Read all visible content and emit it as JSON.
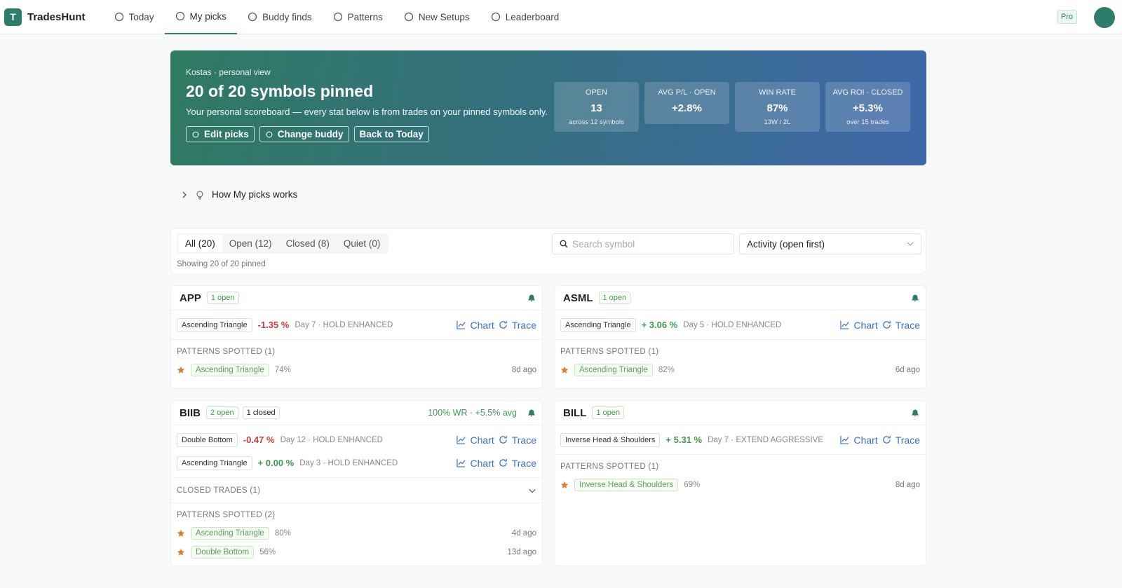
{
  "nav": {
    "logo_letter": "T",
    "brand": "TradesHunt",
    "items": [
      "Today",
      "My picks",
      "Buddy finds",
      "Patterns",
      "New Setups",
      "Leaderboard"
    ],
    "badge": "Pro"
  },
  "hero": {
    "eyebrow": "Kostas · personal view",
    "title": "20 of 20 symbols pinned",
    "subtitle": "Your personal scoreboard — every stat below is from trades on your pinned symbols only.",
    "buttons": [
      "Edit picks",
      "Change buddy",
      "Back to Today"
    ],
    "stats": [
      {
        "label": "OPEN",
        "value": "13",
        "sub": "across 12 symbols"
      },
      {
        "label": "AVG P/L · OPEN",
        "value": "+2.8%"
      },
      {
        "label": "WIN RATE",
        "value": "87%",
        "sub": "13W / 2L"
      },
      {
        "label": "AVG ROI · CLOSED",
        "value": "+5.3%",
        "sub": "over 15 trades"
      }
    ]
  },
  "how": "How My picks works",
  "filters": {
    "tabs": [
      "All (20)",
      "Open (12)",
      "Closed (8)",
      "Quiet (0)"
    ],
    "showing": "Showing 20 of 20 pinned",
    "search_placeholder": "Search symbol",
    "sort": "Activity (open first)"
  },
  "cards": [
    {
      "symbol": "APP",
      "badges": [
        "1 open"
      ],
      "trades": [
        {
          "pattern": "Ascending Triangle",
          "pl": "-1.35 %",
          "status": "Day 7 · HOLD ENHANCED",
          "links": [
            "Chart",
            "Trace"
          ]
        }
      ],
      "patterns_label": "PATTERNS SPOTTED (1)",
      "patterns": [
        {
          "name": "Ascending Triangle",
          "pct": "74%",
          "age": "8d ago"
        }
      ]
    },
    {
      "symbol": "ASML",
      "badges": [
        "1 open"
      ],
      "trades": [
        {
          "pattern": "Ascending Triangle",
          "pl": "+ 3.06 %",
          "status": "Day 5 · HOLD ENHANCED",
          "links": [
            "Chart",
            "Trace"
          ]
        }
      ],
      "patterns_label": "PATTERNS SPOTTED (1)",
      "patterns": [
        {
          "name": "Ascending Triangle",
          "pct": "82%",
          "age": "6d ago"
        }
      ]
    },
    {
      "symbol": "BIIB",
      "badges": [
        "2 open",
        "1 closed"
      ],
      "summary": "100% WR · +5.5% avg",
      "trades": [
        {
          "pattern": "Double Bottom",
          "pl": "-0.47 %",
          "status": "Day 12 · HOLD ENHANCED",
          "links": [
            "Chart",
            "Trace"
          ]
        },
        {
          "pattern": "Ascending Triangle",
          "pl": "+ 0.00 %",
          "status": "Day 3 · HOLD ENHANCED",
          "links": [
            "Chart",
            "Trace"
          ]
        }
      ],
      "closed_label": "CLOSED TRADES (1)",
      "patterns_label": "PATTERNS SPOTTED (2)",
      "patterns": [
        {
          "name": "Ascending Triangle",
          "pct": "80%",
          "age": "4d ago"
        },
        {
          "name": "Double Bottom",
          "pct": "56%",
          "age": "13d ago"
        }
      ]
    },
    {
      "symbol": "BILL",
      "badges": [
        "1 open"
      ],
      "trades": [
        {
          "pattern": "Inverse Head & Shoulders",
          "pl": "+ 5.31 %",
          "status": "Day 7 · EXTEND AGGRESSIVE",
          "links": [
            "Chart",
            "Trace"
          ]
        }
      ],
      "patterns_label": "PATTERNS SPOTTED (1)",
      "patterns": [
        {
          "name": "Inverse Head & Shoulders",
          "pct": "69%",
          "age": "8d ago"
        }
      ]
    }
  ]
}
